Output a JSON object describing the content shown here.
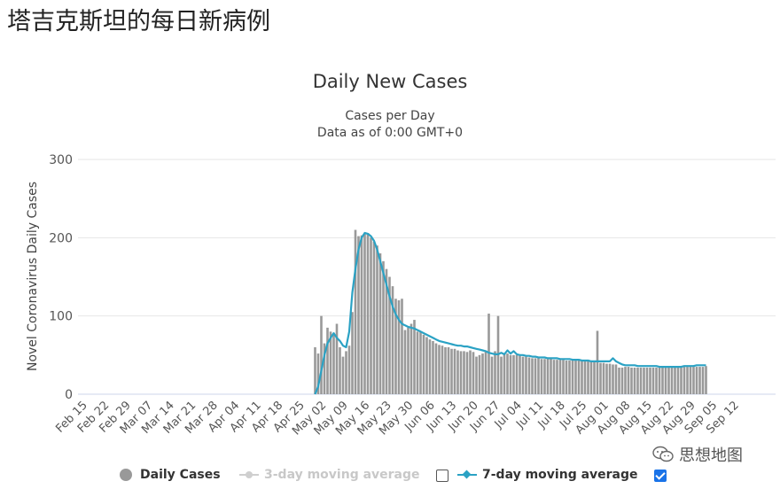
{
  "page_title": "塔吉克斯坦的每日新病例",
  "chart_data": {
    "type": "bar",
    "title": "Daily New Cases",
    "subtitle": "Cases per Day",
    "subtitle2": "Data as of 0:00 GMT+0",
    "ylabel": "Novel Coronavirus Daily Cases",
    "ylim": [
      0,
      300
    ],
    "yticks": [
      0,
      100,
      200,
      300
    ],
    "grid": true,
    "legend_position": "bottom",
    "x_start": "Feb 15",
    "x_tick_labels": [
      "Feb 15",
      "Feb 22",
      "Feb 29",
      "Mar 07",
      "Mar 14",
      "Mar 21",
      "Mar 28",
      "Apr 04",
      "Apr 11",
      "Apr 18",
      "Apr 25",
      "May 02",
      "May 09",
      "May 16",
      "May 23",
      "May 30",
      "Jun 06",
      "Jun 13",
      "Jun 20",
      "Jun 27",
      "Jul 04",
      "Jul 11",
      "Jul 18",
      "Jul 25",
      "Aug 01",
      "Aug 08",
      "Aug 15",
      "Aug 22",
      "Aug 29",
      "Sep 05",
      "Sep 12"
    ],
    "series": [
      {
        "name": "Daily Cases",
        "color": "#999999",
        "first_date": "Apr 30",
        "values": [
          60,
          52,
          100,
          65,
          85,
          80,
          78,
          90,
          60,
          48,
          55,
          62,
          105,
          210,
          202,
          203,
          205,
          206,
          200,
          195,
          190,
          180,
          170,
          160,
          150,
          138,
          122,
          120,
          122,
          82,
          85,
          90,
          95,
          80,
          80,
          76,
          73,
          70,
          68,
          65,
          63,
          62,
          60,
          60,
          58,
          58,
          56,
          55,
          55,
          54,
          56,
          54,
          48,
          50,
          52,
          55,
          103,
          48,
          55,
          100,
          48,
          52,
          52,
          50,
          50,
          50,
          49,
          48,
          48,
          47,
          46,
          46,
          46,
          45,
          45,
          45,
          45,
          44,
          44,
          44,
          44,
          43,
          43,
          43,
          43,
          43,
          42,
          42,
          42,
          42,
          42,
          81,
          40,
          40,
          39,
          39,
          38,
          38,
          34,
          34,
          35,
          35,
          34,
          34,
          34,
          34,
          34,
          34,
          34,
          34,
          34,
          34,
          34,
          34,
          34,
          34,
          34,
          34,
          34,
          35,
          35,
          35,
          35,
          35,
          35,
          35,
          36
        ]
      },
      {
        "name": "3-day moving average",
        "color": "#cccccc",
        "visible": false
      },
      {
        "name": "7-day moving average",
        "color": "#2ba2c4",
        "first_date": "Apr 30",
        "values": [
          0,
          10,
          30,
          50,
          65,
          72,
          78,
          72,
          68,
          62,
          60,
          80,
          130,
          160,
          185,
          200,
          206,
          205,
          202,
          196,
          185,
          170,
          155,
          140,
          125,
          112,
          102,
          95,
          90,
          88,
          86,
          85,
          84,
          82,
          80,
          78,
          76,
          74,
          72,
          70,
          68,
          67,
          66,
          65,
          64,
          63,
          62,
          62,
          61,
          61,
          60,
          59,
          58,
          57,
          56,
          55,
          53,
          52,
          51,
          51,
          53,
          51,
          56,
          52,
          55,
          51,
          50,
          50,
          49,
          49,
          48,
          48,
          47,
          47,
          47,
          46,
          46,
          46,
          46,
          45,
          45,
          45,
          45,
          44,
          44,
          44,
          43,
          43,
          43,
          42,
          42,
          42,
          42,
          42,
          42,
          42,
          46,
          42,
          40,
          38,
          37,
          37,
          37,
          37,
          36,
          36,
          36,
          36,
          36,
          36,
          36,
          35,
          35,
          35,
          35,
          35,
          35,
          35,
          35,
          36,
          36,
          36,
          36,
          37,
          37,
          37,
          37
        ]
      }
    ]
  },
  "legend": {
    "daily_label": "Daily Cases",
    "ma3_label": "3-day moving average",
    "ma7_label": "7-day moving average",
    "ma3_checked": false,
    "ma7_checked": true
  },
  "watermark": "思想地图"
}
